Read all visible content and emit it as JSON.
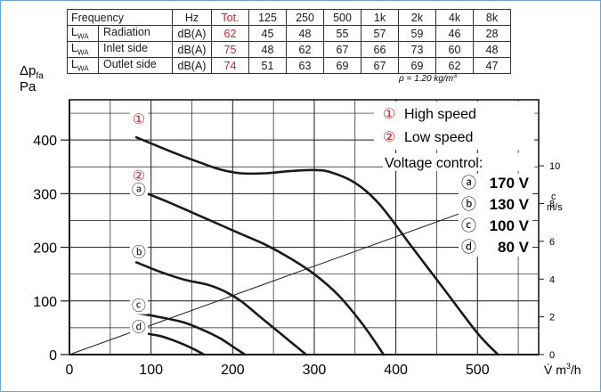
{
  "table": {
    "header": [
      "Frequency",
      "Hz",
      "Tot.",
      "125",
      "250",
      "500",
      "1k",
      "2k",
      "4k",
      "8k"
    ],
    "rows": [
      {
        "symbol": "L",
        "sub": "WA",
        "label": "Radiation",
        "unit": "dB(A)",
        "total": "62",
        "values": [
          "45",
          "48",
          "55",
          "57",
          "59",
          "46",
          "28"
        ]
      },
      {
        "symbol": "L",
        "sub": "WA",
        "label": "Inlet side",
        "unit": "dB(A)",
        "total": "75",
        "values": [
          "48",
          "62",
          "67",
          "66",
          "73",
          "60",
          "48"
        ]
      },
      {
        "symbol": "L",
        "sub": "WA",
        "label": "Outlet side",
        "unit": "dB(A)",
        "total": "74",
        "values": [
          "51",
          "63",
          "69",
          "67",
          "69",
          "62",
          "47"
        ]
      }
    ],
    "total_color": "#d0202e"
  },
  "density_note": "ρ = 1.20 kg/m",
  "density_sup": "3",
  "y_axis_label": "Δp",
  "y_axis_sub": "fa",
  "y_axis_unit": "Pa",
  "x_axis_label": "V̇  m",
  "x_axis_sup": "3",
  "x_axis_tail": "/h",
  "right_axis_label": "c",
  "right_axis_unit": "m/s",
  "legend": {
    "high_marker": "①",
    "high_label": "High speed",
    "low_marker": "②",
    "low_label": "Low speed",
    "voltage_title": "Voltage control:",
    "voltages": [
      {
        "marker": "ⓐ",
        "label": "170 V"
      },
      {
        "marker": "ⓑ",
        "label": "130 V"
      },
      {
        "marker": "ⓒ",
        "label": "100 V"
      },
      {
        "marker": "ⓓ",
        "label": "80 V"
      }
    ]
  },
  "chart_data": {
    "type": "line",
    "xlim": [
      0,
      575
    ],
    "ylim": [
      0,
      475
    ],
    "x_ticks": [
      0,
      100,
      200,
      300,
      400,
      500
    ],
    "y_ticks": [
      0,
      100,
      200,
      300,
      400
    ],
    "right_axis": {
      "ticks": [
        0,
        2,
        4,
        6,
        8,
        10
      ],
      "max_at_ylim": 13.5
    },
    "grid": true,
    "curve_markers": [
      {
        "text": "①",
        "x": 85,
        "y": 430,
        "color": "#d0202e"
      },
      {
        "text": "②",
        "x": 85,
        "y": 325,
        "color": "#d0202e"
      },
      {
        "text": "ⓐ",
        "x": 85,
        "y": 298,
        "color": "#1a1a1a"
      },
      {
        "text": "ⓑ",
        "x": 85,
        "y": 182,
        "color": "#1a1a1a"
      },
      {
        "text": "ⓒ",
        "x": 85,
        "y": 82,
        "color": "#1a1a1a"
      },
      {
        "text": "ⓓ",
        "x": 85,
        "y": 42,
        "color": "#1a1a1a"
      }
    ],
    "series": [
      {
        "x": [
          82,
          130,
          160,
          185,
          210,
          240,
          270,
          300,
          320,
          350,
          380,
          420,
          460,
          500,
          525
        ],
        "y": [
          405,
          375,
          358,
          345,
          338,
          338,
          342,
          344,
          340,
          320,
          280,
          200,
          120,
          40,
          0
        ]
      },
      {
        "x": [
          82,
          120,
          150,
          180,
          210,
          240,
          270,
          300,
          330,
          360,
          385
        ],
        "y": [
          308,
          285,
          265,
          245,
          225,
          205,
          180,
          150,
          110,
          55,
          0
        ]
      },
      {
        "x": [
          82,
          110,
          140,
          170,
          190,
          210,
          230,
          250,
          270,
          290
        ],
        "y": [
          172,
          155,
          140,
          130,
          118,
          100,
          75,
          50,
          25,
          0
        ]
      },
      {
        "x": [
          82,
          110,
          140,
          165,
          185,
          200,
          215
        ],
        "y": [
          78,
          70,
          60,
          45,
          30,
          15,
          0
        ]
      },
      {
        "x": [
          82,
          110,
          130,
          150,
          165
        ],
        "y": [
          42,
          35,
          25,
          12,
          0
        ]
      }
    ],
    "system_line": {
      "x": [
        0,
        555
      ],
      "y": [
        0,
        305
      ]
    }
  }
}
